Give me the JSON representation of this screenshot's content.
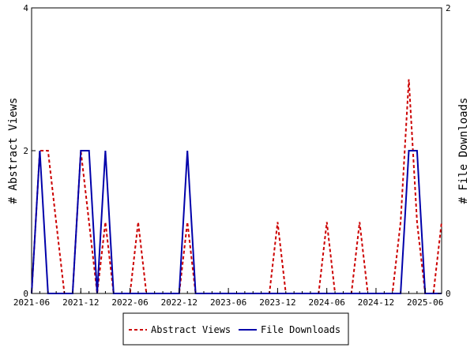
{
  "chart_data": {
    "type": "line",
    "x": [
      "2021-06",
      "2021-07",
      "2021-08",
      "2021-09",
      "2021-10",
      "2021-11",
      "2021-12",
      "2022-01",
      "2022-02",
      "2022-03",
      "2022-04",
      "2022-05",
      "2022-06",
      "2022-07",
      "2022-08",
      "2022-09",
      "2022-10",
      "2022-11",
      "2022-12",
      "2023-01",
      "2023-02",
      "2023-03",
      "2023-04",
      "2023-05",
      "2023-06",
      "2023-07",
      "2023-08",
      "2023-09",
      "2023-10",
      "2023-11",
      "2023-12",
      "2024-01",
      "2024-02",
      "2024-03",
      "2024-04",
      "2024-05",
      "2024-06",
      "2024-07",
      "2024-08",
      "2024-09",
      "2024-10",
      "2024-11",
      "2024-12",
      "2025-01",
      "2025-02",
      "2025-03",
      "2025-04",
      "2025-05",
      "2025-06",
      "2025-07",
      "2025-08"
    ],
    "xticks": [
      "2021-06",
      "2021-12",
      "2022-06",
      "2022-12",
      "2023-06",
      "2023-12",
      "2024-06",
      "2024-12",
      "2025-06"
    ],
    "series": [
      {
        "name": "Abstract Views",
        "axis": "left",
        "color": "#cc0000",
        "style": "dashed",
        "values": [
          0,
          2,
          2,
          1,
          0,
          0,
          2,
          1,
          0,
          1,
          0,
          0,
          0,
          1,
          0,
          0,
          0,
          0,
          0,
          1,
          0,
          0,
          0,
          0,
          0,
          0,
          0,
          0,
          0,
          0,
          1,
          0,
          0,
          0,
          0,
          0,
          1,
          0,
          0,
          0,
          1,
          0,
          0,
          0,
          0,
          1,
          3,
          1,
          0,
          0,
          1
        ]
      },
      {
        "name": "File Downloads",
        "axis": "right",
        "color": "#0000aa",
        "style": "solid",
        "values": [
          0,
          1,
          0,
          0,
          0,
          0,
          1,
          1,
          0,
          1,
          0,
          0,
          0,
          0,
          0,
          0,
          0,
          0,
          0,
          1,
          0,
          0,
          0,
          0,
          0,
          0,
          0,
          0,
          0,
          0,
          0,
          0,
          0,
          0,
          0,
          0,
          0,
          0,
          0,
          0,
          0,
          0,
          0,
          0,
          0,
          0,
          1,
          1,
          0,
          0,
          0
        ]
      }
    ],
    "ylabel": "# Abstract Views",
    "y2label": "# File Downloads",
    "ylim": [
      0,
      4
    ],
    "y2lim": [
      0,
      2
    ],
    "yticks": [
      "0",
      "2",
      "4"
    ],
    "y2ticks": [
      "0",
      "2"
    ],
    "grid": false,
    "legend": "bottom"
  }
}
